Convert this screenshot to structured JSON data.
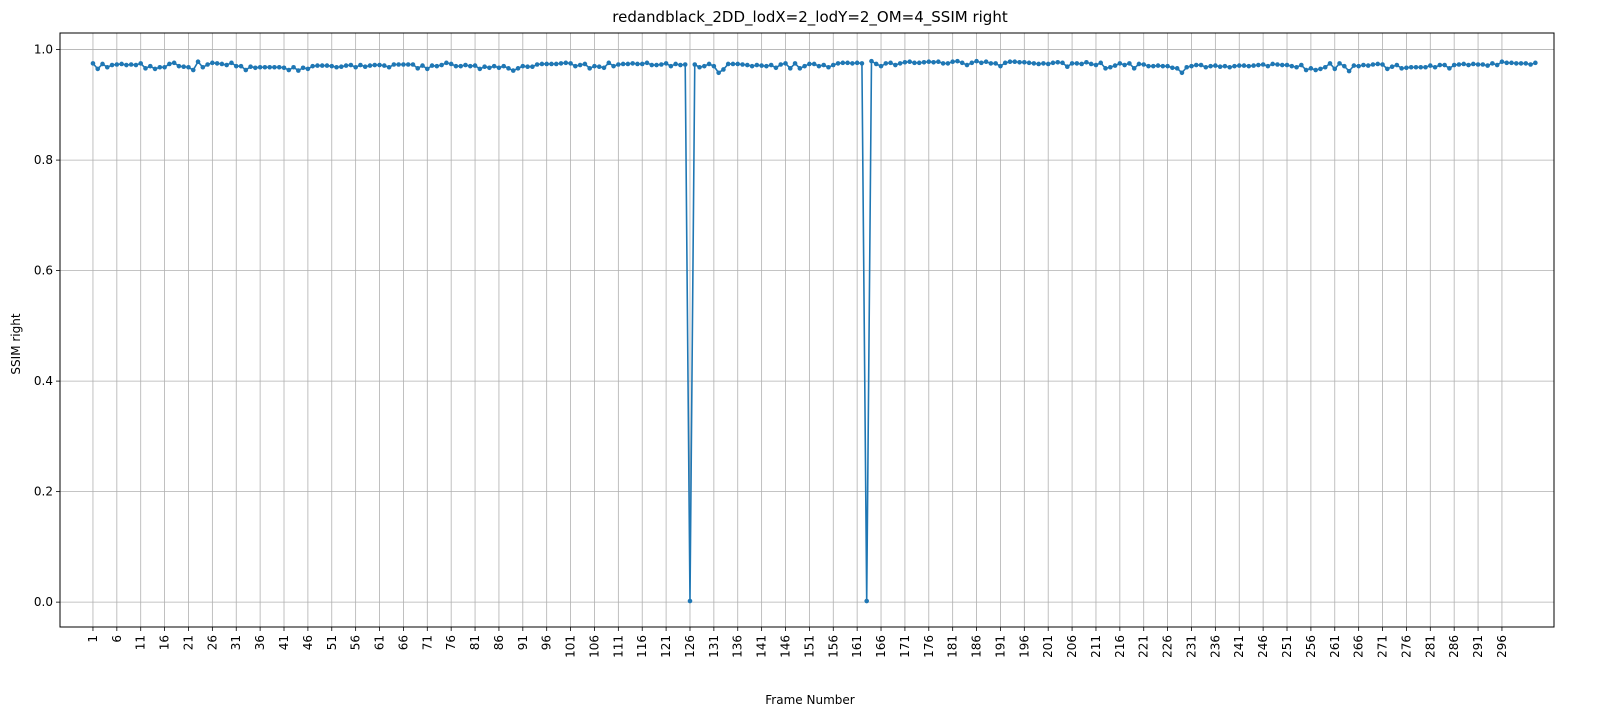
{
  "chart_data": {
    "type": "line",
    "title": "redandblack_2DD_lodX=2_lodY=2_OM=4_SSIM right",
    "xlabel": "Frame Number",
    "ylabel": "SSIM right",
    "xlim": [
      -5.9,
      306.9
    ],
    "ylim": [
      -0.045,
      1.03
    ],
    "grid": true,
    "x_start": 1,
    "x_ticks": [
      1,
      6,
      11,
      16,
      21,
      26,
      31,
      36,
      41,
      46,
      51,
      56,
      61,
      66,
      71,
      76,
      81,
      86,
      91,
      96,
      101,
      106,
      111,
      116,
      121,
      126,
      131,
      136,
      141,
      146,
      151,
      156,
      161,
      166,
      171,
      176,
      181,
      186,
      191,
      196,
      201,
      206,
      211,
      216,
      221,
      226,
      231,
      236,
      241,
      246,
      251,
      256,
      261,
      266,
      271,
      276,
      281,
      286,
      291,
      296
    ],
    "y_ticks": [
      0.0,
      0.2,
      0.4,
      0.6,
      0.8,
      1.0
    ],
    "y_tick_labels": [
      "0.0",
      "0.2",
      "0.4",
      "0.6",
      "0.8",
      "1.0"
    ],
    "series": [
      {
        "color": "#1f77b4",
        "marker": "circle",
        "values": [
          0.975,
          0.965,
          0.974,
          0.968,
          0.972,
          0.973,
          0.974,
          0.972,
          0.973,
          0.972,
          0.975,
          0.966,
          0.97,
          0.965,
          0.968,
          0.968,
          0.974,
          0.976,
          0.97,
          0.969,
          0.968,
          0.963,
          0.978,
          0.968,
          0.973,
          0.976,
          0.975,
          0.974,
          0.972,
          0.976,
          0.97,
          0.97,
          0.963,
          0.969,
          0.967,
          0.968,
          0.968,
          0.968,
          0.968,
          0.968,
          0.967,
          0.963,
          0.968,
          0.962,
          0.967,
          0.965,
          0.97,
          0.971,
          0.971,
          0.971,
          0.97,
          0.968,
          0.969,
          0.971,
          0.972,
          0.968,
          0.972,
          0.969,
          0.971,
          0.972,
          0.972,
          0.971,
          0.968,
          0.973,
          0.973,
          0.973,
          0.973,
          0.973,
          0.966,
          0.971,
          0.965,
          0.971,
          0.97,
          0.972,
          0.976,
          0.974,
          0.97,
          0.97,
          0.972,
          0.97,
          0.971,
          0.965,
          0.969,
          0.967,
          0.97,
          0.967,
          0.97,
          0.966,
          0.962,
          0.966,
          0.97,
          0.969,
          0.969,
          0.973,
          0.974,
          0.974,
          0.974,
          0.974,
          0.975,
          0.976,
          0.975,
          0.97,
          0.972,
          0.974,
          0.966,
          0.97,
          0.969,
          0.967,
          0.976,
          0.97,
          0.973,
          0.974,
          0.974,
          0.975,
          0.974,
          0.974,
          0.976,
          0.972,
          0.972,
          0.973,
          0.975,
          0.97,
          0.974,
          0.972,
          0.973,
          0.002,
          0.973,
          0.968,
          0.97,
          0.974,
          0.97,
          0.958,
          0.964,
          0.974,
          0.974,
          0.974,
          0.973,
          0.972,
          0.97,
          0.972,
          0.971,
          0.97,
          0.972,
          0.967,
          0.973,
          0.975,
          0.966,
          0.975,
          0.966,
          0.97,
          0.974,
          0.974,
          0.97,
          0.972,
          0.968,
          0.972,
          0.975,
          0.976,
          0.976,
          0.975,
          0.976,
          0.975,
          0.002,
          0.979,
          0.974,
          0.97,
          0.975,
          0.976,
          0.972,
          0.975,
          0.977,
          0.978,
          0.976,
          0.976,
          0.977,
          0.978,
          0.977,
          0.978,
          0.975,
          0.975,
          0.978,
          0.979,
          0.976,
          0.972,
          0.976,
          0.979,
          0.976,
          0.978,
          0.975,
          0.975,
          0.97,
          0.976,
          0.978,
          0.978,
          0.977,
          0.977,
          0.976,
          0.975,
          0.974,
          0.975,
          0.974,
          0.976,
          0.977,
          0.976,
          0.969,
          0.975,
          0.975,
          0.974,
          0.977,
          0.974,
          0.972,
          0.976,
          0.966,
          0.968,
          0.971,
          0.975,
          0.972,
          0.975,
          0.966,
          0.974,
          0.973,
          0.97,
          0.97,
          0.971,
          0.97,
          0.97,
          0.967,
          0.966,
          0.958,
          0.968,
          0.97,
          0.972,
          0.972,
          0.968,
          0.97,
          0.971,
          0.969,
          0.97,
          0.968,
          0.97,
          0.971,
          0.971,
          0.97,
          0.971,
          0.972,
          0.973,
          0.97,
          0.974,
          0.973,
          0.972,
          0.972,
          0.97,
          0.968,
          0.972,
          0.963,
          0.966,
          0.963,
          0.965,
          0.968,
          0.975,
          0.965,
          0.975,
          0.97,
          0.961,
          0.971,
          0.97,
          0.972,
          0.971,
          0.973,
          0.974,
          0.973,
          0.965,
          0.969,
          0.972,
          0.966,
          0.967,
          0.968,
          0.968,
          0.968,
          0.968,
          0.971,
          0.968,
          0.972,
          0.972,
          0.966,
          0.972,
          0.973,
          0.974,
          0.972,
          0.974,
          0.973,
          0.973,
          0.971,
          0.975,
          0.972,
          0.978,
          0.976,
          0.976,
          0.975,
          0.975,
          0.975,
          0.973,
          0.976
        ]
      }
    ]
  }
}
